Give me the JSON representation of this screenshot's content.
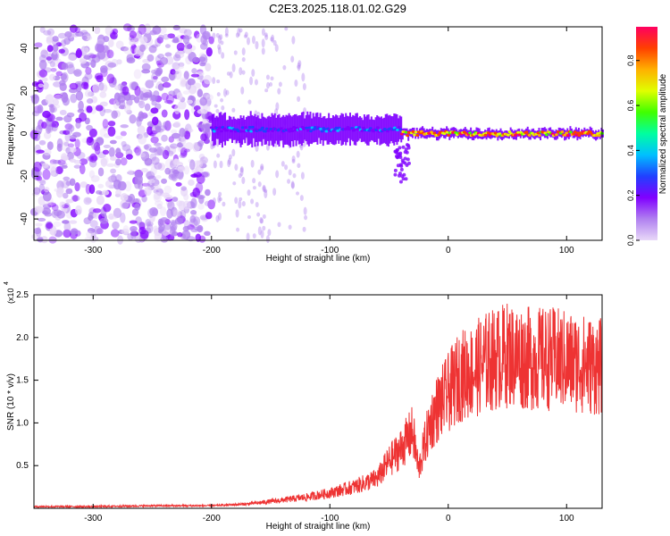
{
  "title": "C2E3.2025.118.01.02.G29",
  "chart_data": [
    {
      "type": "heatmap",
      "xlabel": "Height of straight line (km)",
      "ylabel": "Frequency (Hz)",
      "xlim": [
        -350,
        130
      ],
      "ylim": [
        -50,
        50
      ],
      "xticks": [
        -300,
        -200,
        -100,
        0,
        100
      ],
      "yticks": [
        -40,
        -20,
        0,
        20,
        40
      ],
      "colorbar": {
        "label": "Normalized spectral amplitude",
        "range": [
          0.0,
          0.95
        ],
        "ticks": [
          "0.0",
          "0.2",
          "0.4",
          "0.6",
          "0.8"
        ],
        "tick_values": [
          0.0,
          0.2,
          0.4,
          0.6,
          0.8
        ],
        "colormap": [
          "#e8d8f8",
          "#b080f0",
          "#8000ff",
          "#2040ff",
          "#00c0ff",
          "#00ffa0",
          "#40ff00",
          "#e0ff00",
          "#ffb000",
          "#ff4000",
          "#ff0060"
        ]
      },
      "regions": [
        {
          "x": [
            -350,
            -200
          ],
          "description_level": 0.1,
          "freq_range": [
            -50,
            50
          ]
        },
        {
          "x": [
            -200,
            -40
          ],
          "center_hz": 2,
          "halfwidth_hz": 6,
          "peak_level": 0.35
        },
        {
          "x": [
            -40,
            130
          ],
          "center_hz": 0,
          "halfwidth_hz": 2,
          "peak_level": 0.95
        }
      ]
    },
    {
      "type": "line",
      "xlabel": "Height of straight line (km)",
      "ylabel": "SNR (10 * v/v)",
      "yscale_label": "(x10",
      "yscale_exp": "4",
      "xlim": [
        -350,
        130
      ],
      "ylim": [
        0,
        2.5
      ],
      "xticks": [
        -300,
        -200,
        -100,
        0,
        100
      ],
      "yticks": [
        "0.5",
        "1.0",
        "1.5",
        "2.0",
        "2.5"
      ],
      "ytick_values": [
        0.5,
        1.0,
        1.5,
        2.0,
        2.5
      ],
      "color": "#ee3333",
      "series": [
        {
          "x": [
            -350,
            -300,
            -250,
            -200,
            -170,
            -150,
            -120,
            -100,
            -80,
            -60,
            -50,
            -40,
            -30,
            -25,
            -20,
            -15,
            -10,
            0,
            10,
            20,
            30,
            50,
            70,
            90,
            110,
            130
          ],
          "y": [
            0.02,
            0.02,
            0.03,
            0.03,
            0.05,
            0.08,
            0.13,
            0.18,
            0.25,
            0.35,
            0.55,
            0.7,
            0.9,
            0.45,
            0.75,
            1.0,
            1.15,
            1.35,
            1.55,
            1.6,
            1.7,
            1.8,
            1.75,
            1.75,
            1.7,
            1.65
          ]
        }
      ]
    }
  ]
}
